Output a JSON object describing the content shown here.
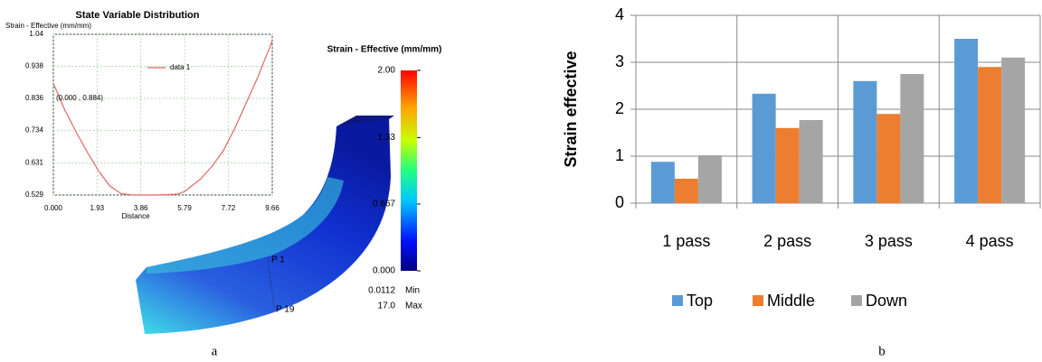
{
  "chart_data": [
    {
      "type": "line",
      "title": "State Variable Distribution",
      "y_label": "Strain - Effective (mm/mm)",
      "x_label": "Distance",
      "x": [
        0,
        0.5,
        1,
        1.5,
        2,
        2.5,
        3,
        3.5,
        4,
        4.5,
        5,
        5.5,
        5.79,
        6.5,
        7,
        7.5,
        8,
        8.5,
        9,
        9.5,
        9.66
      ],
      "series": [
        {
          "name": "data 1",
          "color": "#e06666",
          "values": [
            0.884,
            0.8,
            0.73,
            0.665,
            0.605,
            0.557,
            0.533,
            0.529,
            0.529,
            0.529,
            0.53,
            0.532,
            0.54,
            0.58,
            0.62,
            0.67,
            0.74,
            0.82,
            0.9,
            0.99,
            1.02
          ]
        }
      ],
      "annotation": "(0.000 , 0.884)",
      "xlim": [
        0,
        9.66
      ],
      "ylim": [
        0.529,
        1.04
      ],
      "xticks": [
        {
          "value": 0,
          "label": "0.000"
        },
        1.93,
        3.86,
        5.79,
        7.72,
        9.66
      ],
      "yticks": [
        0.529,
        0.631,
        0.734,
        0.836,
        0.938,
        1.04
      ],
      "grid": true
    },
    {
      "type": "bar",
      "y_label": "Strain effective",
      "categories": [
        "1 pass",
        "2 pass",
        "3 pass",
        "4 pass"
      ],
      "series": [
        {
          "name": "Top",
          "color": "#5b9bd5",
          "values": [
            0.88,
            2.33,
            2.6,
            3.5
          ]
        },
        {
          "name": "Middle",
          "color": "#ed7d31",
          "values": [
            0.52,
            1.6,
            1.9,
            2.9
          ]
        },
        {
          "name": "Down",
          "color": "#a5a5a5",
          "values": [
            1.02,
            1.77,
            2.75,
            3.1
          ]
        }
      ],
      "ylim": [
        0,
        4
      ],
      "yticks": [
        0,
        1,
        2,
        3,
        4
      ],
      "grid": true,
      "legend": "bottom"
    }
  ],
  "contour": {
    "title": "Strain - Effective (mm/mm)",
    "range": [
      0,
      2
    ],
    "ticks": [
      {
        "value": 2,
        "label": "2.00"
      },
      1.33,
      0.667,
      {
        "value": 0,
        "label": "0.000"
      }
    ],
    "min_value": "0.0112",
    "min_text": "Min",
    "max_value": "17.0",
    "max_text": "Max",
    "probe_labels": [
      "P 1",
      "P 19"
    ]
  },
  "panel_labels": [
    "a",
    "b"
  ]
}
